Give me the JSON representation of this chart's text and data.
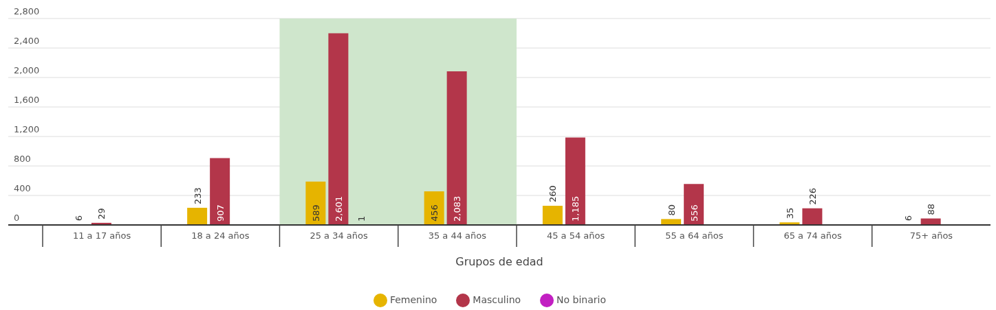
{
  "chart_data": {
    "type": "bar",
    "xlabel": "Grupos de edad",
    "categories": [
      "11 a 17 años",
      "18 a 24 años",
      "25 a 34 años",
      "35 a 44 años",
      "45 a 54 años",
      "55 a 64 años",
      "65 a 74 años",
      "75+ años"
    ],
    "series": [
      {
        "name": "Femenino",
        "color": "#e6b400",
        "values": [
          6,
          233,
          589,
          456,
          260,
          80,
          35,
          6
        ],
        "value_labels": [
          "6",
          "233",
          "589",
          "456",
          "260",
          "80",
          "35",
          "6"
        ]
      },
      {
        "name": "Masculino",
        "color": "#b3364a",
        "values": [
          29,
          907,
          2601,
          2083,
          1185,
          556,
          226,
          88
        ],
        "value_labels": [
          "29",
          "907",
          "2,601",
          "2,083",
          "1,185",
          "556",
          "226",
          "88"
        ]
      },
      {
        "name": "No binario",
        "color": "#c21fc2",
        "values": [
          null,
          null,
          1,
          null,
          null,
          null,
          null,
          null
        ],
        "value_labels": [
          null,
          null,
          "1",
          null,
          null,
          null,
          null,
          null
        ]
      }
    ],
    "ylim": [
      0,
      2800
    ],
    "yticks": [
      0,
      400,
      800,
      {
        "value": 1200,
        "label": "1,200"
      },
      {
        "value": 1600,
        "label": "1,600"
      },
      {
        "value": 2000,
        "label": "2,000"
      },
      {
        "value": 2400,
        "label": "2,400"
      },
      {
        "value": 2800,
        "label": "2,800"
      }
    ],
    "grid": "y",
    "legend": "bottom",
    "bands": [
      {
        "axis": "x",
        "from": "25 a 34 años",
        "to": "35 a 44 años",
        "color": "#cfe6cc"
      }
    ]
  }
}
